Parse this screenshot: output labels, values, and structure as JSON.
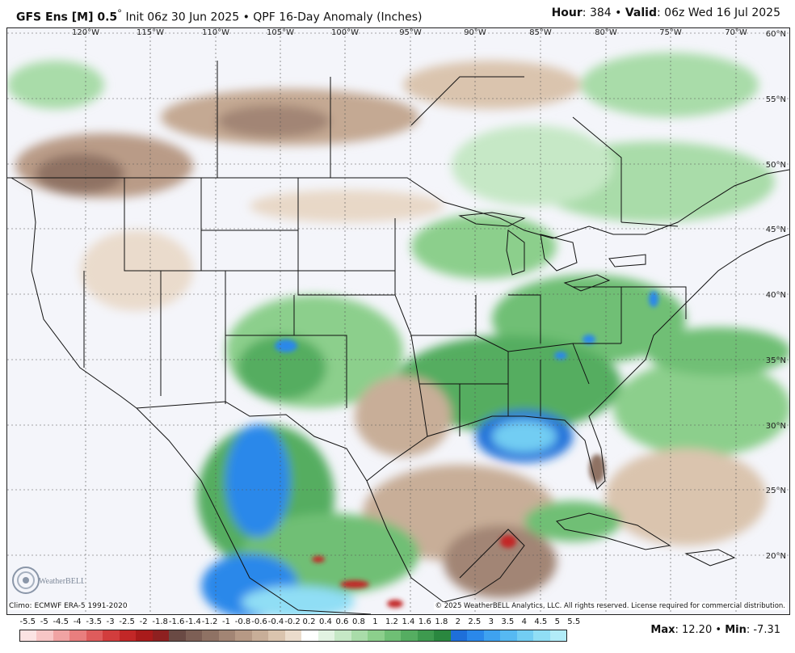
{
  "header": {
    "model": "GFS Ens [M] 0.5",
    "degree": "°",
    "init": "Init 06z 30 Jun 2025",
    "bullet": "•",
    "product": "QPF 16-Day Anomaly (Inches)",
    "hour_label": "Hour",
    "hour_value": ": 384",
    "valid_label": "Valid",
    "valid_value": ": 06z Wed 16 Jul 2025"
  },
  "map": {
    "longitude_labels": [
      "120°W",
      "115°W",
      "110°W",
      "105°W",
      "100°W",
      "95°W",
      "90°W",
      "85°W",
      "80°W",
      "75°W",
      "70°W"
    ],
    "latitude_labels": [
      "60°N",
      "55°N",
      "50°N",
      "45°N",
      "40°N",
      "35°N",
      "30°N",
      "25°N",
      "20°N"
    ],
    "climo_note": "Climo: ECMWF ERA-5 1991-2020",
    "copyright": "© 2025 WeatherBELL Analytics, LLC. All rights reserved. License required for commercial distribution.",
    "logo_text": "WeatherBELL"
  },
  "legend": {
    "tick_labels": [
      "-5.5",
      "-5",
      "-4.5",
      "-4",
      "-3.5",
      "-3",
      "-2.5",
      "-2",
      "-1.8",
      "-1.6",
      "-1.4",
      "-1.2",
      "-1",
      "-0.8",
      "-0.6",
      "-0.4",
      "-0.2",
      "0.2",
      "0.4",
      "0.6",
      "0.8",
      "1",
      "1.2",
      "1.4",
      "1.6",
      "1.8",
      "2",
      "2.5",
      "3",
      "3.5",
      "4",
      "4.5",
      "5",
      "5.5"
    ],
    "colors": [
      "#fbe3e3",
      "#f7c6c6",
      "#f0a3a3",
      "#e97e7e",
      "#de5c5c",
      "#d23d3d",
      "#c22727",
      "#a91b1b",
      "#8e2020",
      "#6a4a44",
      "#7d5f55",
      "#8f7264",
      "#a28574",
      "#b69985",
      "#c8ae98",
      "#dac4ae",
      "#ebdccc",
      "#ffffff",
      "#e2f3e2",
      "#c6e8c6",
      "#a9dca9",
      "#8ccf8c",
      "#6fbf75",
      "#55ad61",
      "#3e9a4f",
      "#2a873f",
      "#1e6fd9",
      "#2a88ea",
      "#3ea2f0",
      "#56b9f2",
      "#72cdf3",
      "#90def5",
      "#b2ecf8"
    ],
    "max_label": "Max",
    "max_value": ": 12.20",
    "min_label": "Min",
    "min_value": ": -7.31"
  }
}
